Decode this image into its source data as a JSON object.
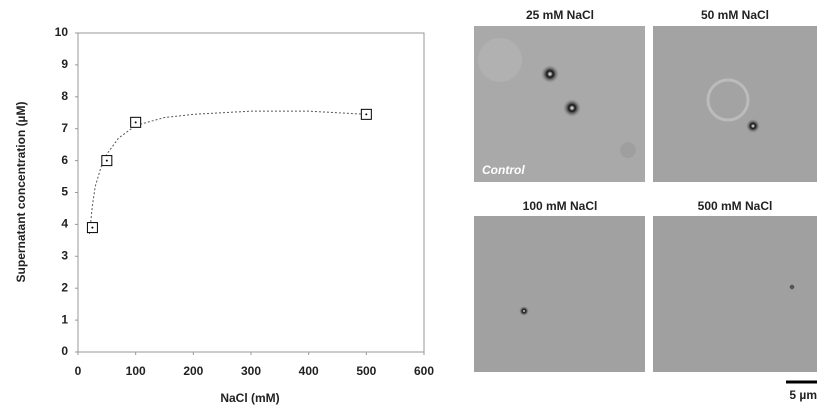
{
  "chart_data": {
    "type": "scatter",
    "xlabel": "NaCl (mM)",
    "ylabel": "Supernatant concentration (µM)",
    "x": [
      25,
      50,
      100,
      500
    ],
    "values": [
      3.9,
      6.0,
      7.2,
      7.45
    ],
    "color": "#000000",
    "fit": {
      "x": [
        20,
        25,
        30,
        40,
        50,
        70,
        100,
        150,
        200,
        300,
        400,
        500
      ],
      "values": [
        3.7,
        4.6,
        5.2,
        5.8,
        6.2,
        6.7,
        7.1,
        7.35,
        7.45,
        7.55,
        7.55,
        7.45
      ],
      "color": "#555555"
    },
    "xlim": [
      0,
      600
    ],
    "xticks": [
      0,
      100,
      200,
      300,
      400,
      500,
      600
    ],
    "ylim": [
      0,
      10
    ],
    "yticks": [
      0,
      1,
      2,
      3,
      4,
      5,
      6,
      7,
      8,
      9,
      10
    ],
    "grid": false
  },
  "micrographs": {
    "panels": [
      {
        "title": "25 mM NaCl"
      },
      {
        "title": "50 mM NaCl"
      },
      {
        "title": "100 mM NaCl"
      },
      {
        "title": "500 mM NaCl"
      }
    ],
    "control_label": "Control",
    "scale_bar": "5 µm"
  }
}
